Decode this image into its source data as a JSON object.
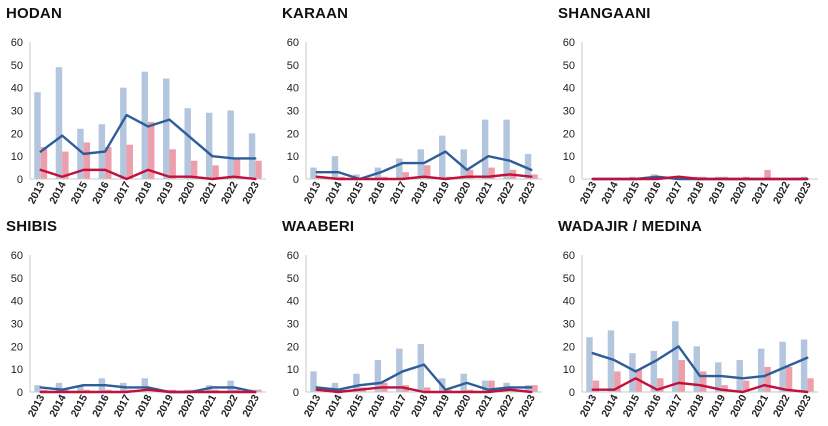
{
  "colors": {
    "bar_series_a": "#b3c6de",
    "bar_series_b": "#ec9fab",
    "line_series_a": "#2e5d97",
    "line_series_b": "#c0103c",
    "axis": "#c8c8c8",
    "tick_text": "#222222"
  },
  "chart_data": [
    {
      "type": "bar",
      "title": "HODAN",
      "categories": [
        "2013",
        "2014",
        "2015",
        "2016",
        "2017",
        "2018",
        "2019",
        "2020",
        "2021",
        "2022",
        "2023"
      ],
      "ylim": [
        0,
        60
      ],
      "yticks": [
        0,
        10,
        20,
        30,
        40,
        50,
        60
      ],
      "grid": false,
      "series": [
        {
          "kind": "bar",
          "values": [
            38,
            49,
            22,
            24,
            40,
            47,
            44,
            31,
            29,
            30,
            20
          ]
        },
        {
          "kind": "bar",
          "values": [
            14,
            12,
            16,
            14,
            15,
            25,
            13,
            8,
            6,
            9,
            8
          ]
        },
        {
          "kind": "line",
          "values": [
            12,
            19,
            11,
            12,
            28,
            23,
            26,
            18,
            10,
            9,
            9
          ]
        },
        {
          "kind": "line",
          "values": [
            4,
            1,
            4,
            4,
            0,
            4,
            1,
            1,
            0,
            1,
            0
          ]
        }
      ]
    },
    {
      "type": "bar",
      "title": "KARAAN",
      "categories": [
        "2013",
        "2014",
        "2015",
        "2016",
        "2017",
        "2018",
        "2019",
        "2020",
        "2021",
        "2022",
        "2023"
      ],
      "ylim": [
        0,
        60
      ],
      "yticks": [
        0,
        10,
        20,
        30,
        40,
        50,
        60
      ],
      "grid": false,
      "series": [
        {
          "kind": "bar",
          "values": [
            5,
            10,
            2,
            5,
            9,
            13,
            19,
            13,
            26,
            26,
            11
          ]
        },
        {
          "kind": "bar",
          "values": [
            1,
            1,
            0,
            1,
            3,
            6,
            1,
            4,
            5,
            4,
            2
          ]
        },
        {
          "kind": "line",
          "values": [
            3,
            3,
            0,
            3,
            7,
            7,
            12,
            4,
            10,
            8,
            4
          ]
        },
        {
          "kind": "line",
          "values": [
            1,
            0,
            0,
            0,
            0,
            1,
            0,
            1,
            1,
            2,
            1
          ]
        }
      ]
    },
    {
      "type": "bar",
      "title": "SHANGAANI",
      "categories": [
        "2013",
        "2014",
        "2015",
        "2016",
        "2017",
        "2018",
        "2019",
        "2020",
        "2021",
        "2022",
        "2023"
      ],
      "ylim": [
        0,
        60
      ],
      "yticks": [
        0,
        10,
        20,
        30,
        40,
        50,
        60
      ],
      "grid": false,
      "series": [
        {
          "kind": "bar",
          "values": [
            0,
            0,
            1,
            2,
            1,
            1,
            1,
            0,
            0,
            0,
            1
          ]
        },
        {
          "kind": "bar",
          "values": [
            0,
            0,
            0,
            0,
            1,
            1,
            1,
            1,
            4,
            0,
            0
          ]
        },
        {
          "kind": "line",
          "values": [
            0,
            0,
            0,
            1,
            0,
            0,
            0,
            0,
            0,
            0,
            0
          ]
        },
        {
          "kind": "line",
          "values": [
            0,
            0,
            0,
            0,
            1,
            0,
            0,
            0,
            0,
            0,
            0
          ]
        }
      ]
    },
    {
      "type": "bar",
      "title": "SHIBIS",
      "categories": [
        "2013",
        "2014",
        "2015",
        "2016",
        "2017",
        "2018",
        "2019",
        "2020",
        "2021",
        "2022",
        "2023"
      ],
      "ylim": [
        0,
        60
      ],
      "yticks": [
        0,
        10,
        20,
        30,
        40,
        50,
        60
      ],
      "grid": false,
      "series": [
        {
          "kind": "bar",
          "values": [
            3,
            4,
            3,
            6,
            4,
            6,
            1,
            1,
            3,
            5,
            1
          ]
        },
        {
          "kind": "bar",
          "values": [
            1,
            1,
            1,
            1,
            1,
            1,
            1,
            1,
            1,
            1,
            1
          ]
        },
        {
          "kind": "line",
          "values": [
            2,
            1,
            3,
            3,
            2,
            2,
            0,
            0,
            2,
            2,
            0
          ]
        },
        {
          "kind": "line",
          "values": [
            0,
            0,
            0,
            0,
            0,
            1,
            0,
            0,
            0,
            0,
            0
          ]
        }
      ]
    },
    {
      "type": "bar",
      "title": "WAABERI",
      "categories": [
        "2013",
        "2014",
        "2015",
        "2016",
        "2017",
        "2018",
        "2019",
        "2020",
        "2021",
        "2022",
        "2023"
      ],
      "ylim": [
        0,
        60
      ],
      "yticks": [
        0,
        10,
        20,
        30,
        40,
        50,
        60
      ],
      "grid": false,
      "series": [
        {
          "kind": "bar",
          "values": [
            9,
            4,
            8,
            14,
            19,
            21,
            6,
            8,
            5,
            4,
            3
          ]
        },
        {
          "kind": "bar",
          "values": [
            1,
            1,
            2,
            4,
            3,
            2,
            1,
            1,
            5,
            2,
            3
          ]
        },
        {
          "kind": "line",
          "values": [
            2,
            1,
            3,
            4,
            9,
            12,
            1,
            4,
            1,
            2,
            2
          ]
        },
        {
          "kind": "line",
          "values": [
            1,
            0,
            1,
            2,
            2,
            0,
            0,
            0,
            0,
            1,
            0
          ]
        }
      ]
    },
    {
      "type": "bar",
      "title": "WADAJIR / MEDINA",
      "categories": [
        "2013",
        "2014",
        "2015",
        "2016",
        "2017",
        "2018",
        "2019",
        "2020",
        "2021",
        "2022",
        "2023"
      ],
      "ylim": [
        0,
        60
      ],
      "yticks": [
        0,
        10,
        20,
        30,
        40,
        50,
        60
      ],
      "grid": false,
      "series": [
        {
          "kind": "bar",
          "values": [
            24,
            27,
            17,
            18,
            31,
            20,
            13,
            14,
            19,
            22,
            23
          ]
        },
        {
          "kind": "bar",
          "values": [
            5,
            9,
            10,
            6,
            14,
            9,
            3,
            5,
            11,
            11,
            6
          ]
        },
        {
          "kind": "line",
          "values": [
            17,
            14,
            9,
            14,
            20,
            7,
            7,
            6,
            7,
            11,
            15
          ]
        },
        {
          "kind": "line",
          "values": [
            1,
            1,
            6,
            1,
            4,
            3,
            1,
            0,
            3,
            1,
            0
          ]
        }
      ]
    }
  ]
}
